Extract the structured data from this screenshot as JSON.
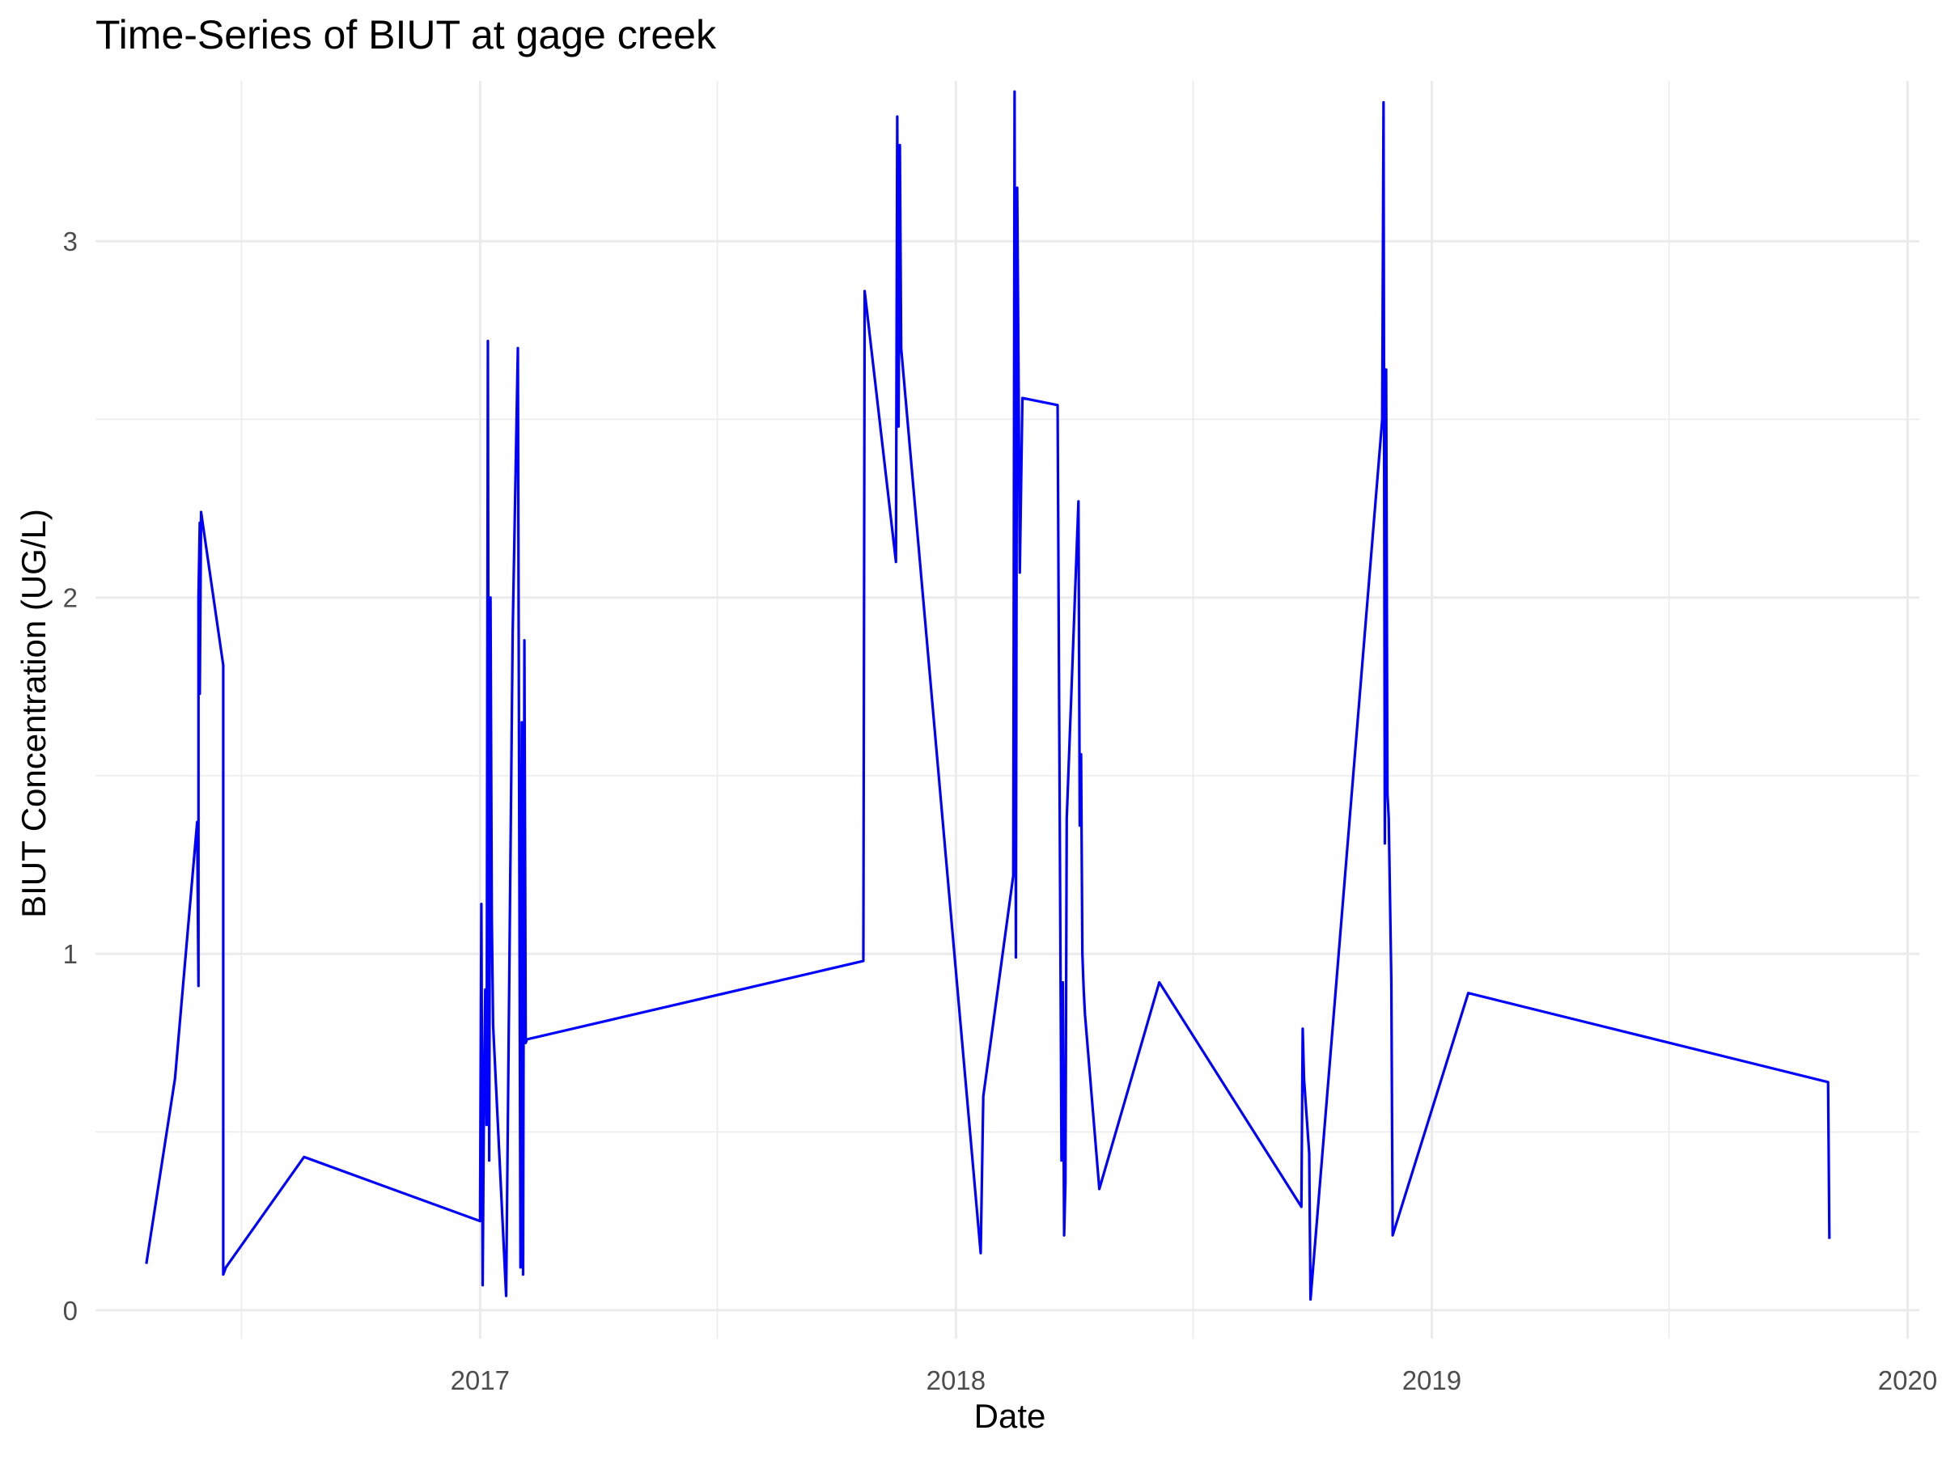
{
  "chart_data": {
    "type": "line",
    "title": "Time-Series of BIUT at gage creek",
    "xlabel": "Date",
    "ylabel": "BIUT Concentration (UG/L)",
    "x_ticks": [
      "2017",
      "2018",
      "2019",
      "2020"
    ],
    "y_ticks": [
      "0",
      "1",
      "2",
      "3"
    ],
    "xlim": [
      "2016-03-12",
      "2020-01-10"
    ],
    "ylim": [
      -0.08,
      3.45
    ],
    "grid": true,
    "legend": "none",
    "line_color": "#0000ff",
    "series": [
      {
        "x": [
          "2016-04-20",
          "2016-05-12",
          "2016-05-29",
          "2016-05-30",
          "2016-05-30",
          "2016-05-31",
          "2016-05-31",
          "2016-06-01",
          "2016-06-18",
          "2016-06-18",
          "2016-06-20",
          "2016-08-19",
          "2017-01-01",
          "2017-01-02",
          "2017-01-03",
          "2017-01-04",
          "2017-01-05",
          "2017-01-06",
          "2017-01-07",
          "2017-01-08",
          "2017-01-09",
          "2017-01-10",
          "2017-01-11",
          "2017-01-21",
          "2017-01-26",
          "2017-01-28",
          "2017-01-30",
          "2017-02-01",
          "2017-02-02",
          "2017-02-03",
          "2017-02-04",
          "2017-02-05",
          "2017-02-06",
          "2017-10-22",
          "2017-10-23",
          "2017-11-16",
          "2017-11-17",
          "2017-11-18",
          "2017-11-19",
          "2017-11-20",
          "2018-01-20",
          "2018-01-22",
          "2018-02-14",
          "2018-02-15",
          "2018-02-16",
          "2018-02-17",
          "2018-02-18",
          "2018-02-19",
          "2018-02-21",
          "2018-03-20",
          "2018-03-23",
          "2018-03-24",
          "2018-03-25",
          "2018-03-26",
          "2018-03-27",
          "2018-04-05",
          "2018-04-06",
          "2018-04-07",
          "2018-04-08",
          "2018-04-09",
          "2018-04-10",
          "2018-04-21",
          "2018-06-06",
          "2018-09-23",
          "2018-09-24",
          "2018-09-25",
          "2018-09-29",
          "2018-09-30",
          "2018-11-24",
          "2018-11-25",
          "2018-11-26",
          "2018-11-27",
          "2018-11-28",
          "2018-11-29",
          "2018-12-01",
          "2018-12-02",
          "2019-01-29",
          "2019-11-01",
          "2019-11-02"
        ],
        "values": [
          0.13,
          0.65,
          1.37,
          0.91,
          2.0,
          2.21,
          1.73,
          2.24,
          1.81,
          0.1,
          0.12,
          0.43,
          0.25,
          1.14,
          0.07,
          0.6,
          0.9,
          0.52,
          2.72,
          0.42,
          2.0,
          1.1,
          0.8,
          0.04,
          1.9,
          2.3,
          2.7,
          0.12,
          1.65,
          0.1,
          1.88,
          0.75,
          0.76,
          0.98,
          2.86,
          2.1,
          3.35,
          2.48,
          3.27,
          2.7,
          0.16,
          0.6,
          1.22,
          3.42,
          0.99,
          3.15,
          2.65,
          2.07,
          2.56,
          2.54,
          0.42,
          0.92,
          0.21,
          0.36,
          1.38,
          2.27,
          1.36,
          1.56,
          1.0,
          0.9,
          0.83,
          0.34,
          0.92,
          0.29,
          0.79,
          0.65,
          0.44,
          0.03,
          2.5,
          3.39,
          1.31,
          2.64,
          1.45,
          1.38,
          0.92,
          0.21,
          0.89,
          0.64,
          0.2
        ]
      }
    ]
  }
}
